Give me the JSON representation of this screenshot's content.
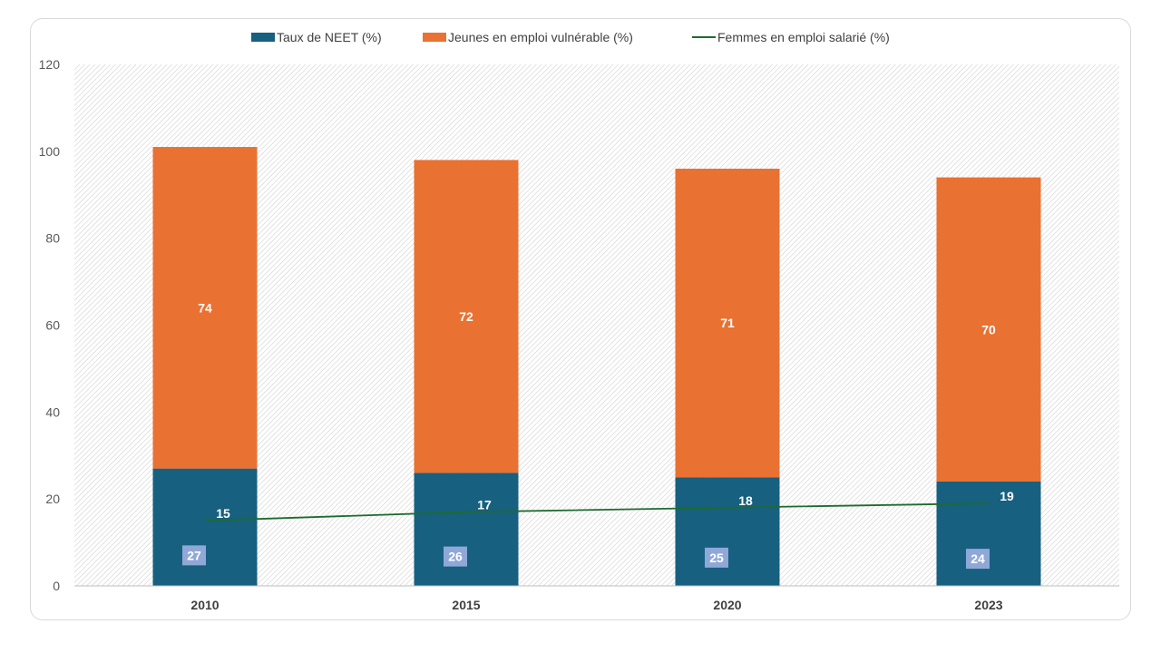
{
  "chart_data": {
    "type": "bar",
    "stacked": true,
    "categories": [
      "2010",
      "2015",
      "2020",
      "2023"
    ],
    "series": [
      {
        "name": "Taux de NEET (%)",
        "kind": "bar",
        "color": "#17607f",
        "values": [
          27,
          26,
          25,
          24
        ]
      },
      {
        "name": "Jeunes en emploi vulnérable (%)",
        "kind": "bar",
        "color": "#e97132",
        "values": [
          74,
          72,
          71,
          70
        ]
      },
      {
        "name": "Femmes en emploi salarié (%)",
        "kind": "line",
        "color": "#1e6b2e",
        "values": [
          15,
          17,
          18,
          19
        ]
      }
    ],
    "ylim": [
      0,
      120
    ],
    "yticks": [
      0,
      20,
      40,
      60,
      80,
      100,
      120
    ],
    "grid": false,
    "plot_background": "hatched",
    "legend_position": "top",
    "neet_label_box_color": "#8fa8d8",
    "title": "",
    "xlabel": "",
    "ylabel": ""
  }
}
